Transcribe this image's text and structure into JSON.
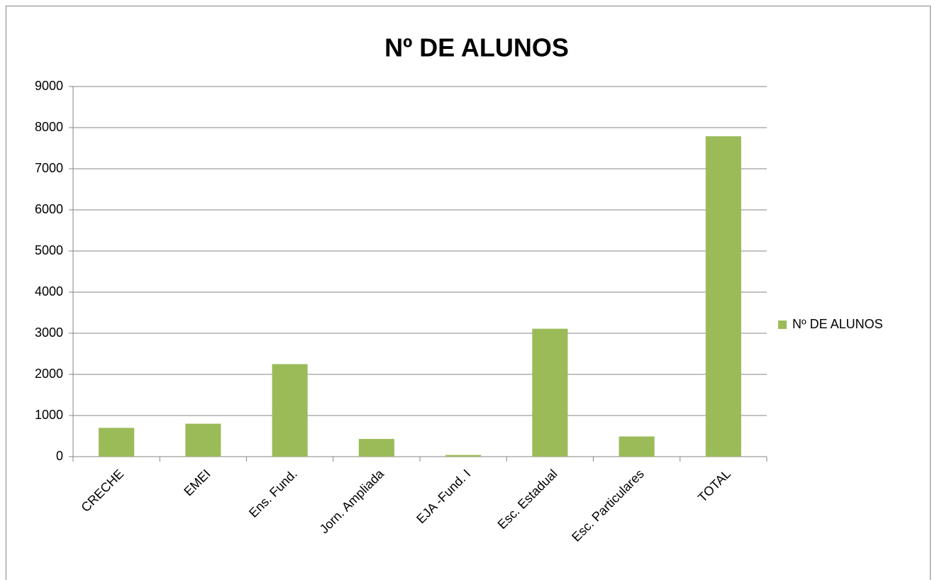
{
  "chart_data": {
    "type": "bar",
    "title": "Nº DE ALUNOS",
    "categories": [
      "CRECHE",
      "EMEI",
      "Ens. Fund.",
      "Jorn. Ampliada",
      "EJA -Fund. I",
      "Esc. Estadual",
      "Esc. Particulares",
      "TOTAL"
    ],
    "series": [
      {
        "name": "Nº DE ALUNOS",
        "color": "#9bbb59",
        "values": [
          700,
          800,
          2250,
          430,
          40,
          3110,
          490,
          7790
        ]
      }
    ],
    "ylim": [
      0,
      9000
    ],
    "yticks": [
      0,
      1000,
      2000,
      3000,
      4000,
      5000,
      6000,
      7000,
      8000,
      9000
    ],
    "grid": true,
    "legend": "right"
  }
}
